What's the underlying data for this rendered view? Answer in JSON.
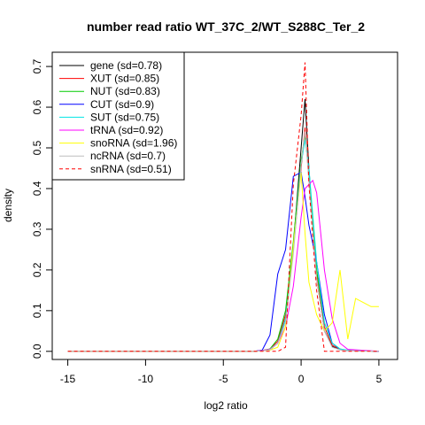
{
  "chart_data": {
    "type": "line",
    "title": "number read ratio WT_37C_2/WT_S288C_Ter_2",
    "xlabel": "log2 ratio",
    "ylabel": "density",
    "xlim": [
      -16,
      6.2
    ],
    "ylim": [
      -0.02,
      0.735
    ],
    "x_ticks": [
      -15,
      -10,
      -5,
      0,
      5
    ],
    "y_ticks": [
      0.0,
      0.1,
      0.2,
      0.3,
      0.4,
      0.5,
      0.6,
      0.7
    ],
    "grid": false,
    "legend_position": "top-left",
    "series": [
      {
        "name": "gene (sd=0.78)",
        "color": "#000000",
        "dash": false,
        "points": [
          [
            -15,
            0
          ],
          [
            -3,
            0
          ],
          [
            -2.5,
            0.001
          ],
          [
            -2,
            0.004
          ],
          [
            -1.5,
            0.02
          ],
          [
            -1,
            0.08
          ],
          [
            -0.5,
            0.26
          ],
          [
            0,
            0.5
          ],
          [
            0.25,
            0.62
          ],
          [
            0.5,
            0.45
          ],
          [
            1,
            0.18
          ],
          [
            1.5,
            0.05
          ],
          [
            2,
            0.012
          ],
          [
            2.5,
            0.004
          ],
          [
            3,
            0.002
          ],
          [
            5,
            0
          ]
        ]
      },
      {
        "name": "XUT (sd=0.85)",
        "color": "#ff0000",
        "dash": false,
        "points": [
          [
            -15,
            0
          ],
          [
            -3,
            0
          ],
          [
            -2.5,
            0.002
          ],
          [
            -2,
            0.006
          ],
          [
            -1.5,
            0.025
          ],
          [
            -1,
            0.09
          ],
          [
            -0.5,
            0.25
          ],
          [
            0,
            0.45
          ],
          [
            0.25,
            0.55
          ],
          [
            0.5,
            0.42
          ],
          [
            1,
            0.19
          ],
          [
            1.5,
            0.06
          ],
          [
            2,
            0.015
          ],
          [
            2.5,
            0.005
          ],
          [
            3,
            0.002
          ],
          [
            5,
            0
          ]
        ]
      },
      {
        "name": "NUT (sd=0.83)",
        "color": "#00cc00",
        "dash": false,
        "points": [
          [
            -15,
            0
          ],
          [
            -3,
            0
          ],
          [
            -2.5,
            0.002
          ],
          [
            -2,
            0.006
          ],
          [
            -1.5,
            0.03
          ],
          [
            -1,
            0.1
          ],
          [
            -0.5,
            0.27
          ],
          [
            0,
            0.47
          ],
          [
            0.25,
            0.53
          ],
          [
            0.5,
            0.44
          ],
          [
            1,
            0.2
          ],
          [
            1.5,
            0.07
          ],
          [
            2,
            0.02
          ],
          [
            2.5,
            0.006
          ],
          [
            3,
            0.002
          ],
          [
            5,
            0
          ]
        ]
      },
      {
        "name": "CUT (sd=0.9)",
        "color": "#0000ff",
        "dash": false,
        "points": [
          [
            -15,
            0
          ],
          [
            -3,
            0
          ],
          [
            -2.5,
            0.003
          ],
          [
            -2,
            0.04
          ],
          [
            -1.5,
            0.19
          ],
          [
            -1,
            0.25
          ],
          [
            -0.5,
            0.43
          ],
          [
            0,
            0.44
          ],
          [
            0.25,
            0.38
          ],
          [
            0.5,
            0.31
          ],
          [
            1,
            0.22
          ],
          [
            1.5,
            0.09
          ],
          [
            2,
            0.02
          ],
          [
            2.5,
            0.005
          ],
          [
            3,
            0.002
          ],
          [
            5,
            0
          ]
        ]
      },
      {
        "name": "SUT (sd=0.75)",
        "color": "#00e5e5",
        "dash": false,
        "points": [
          [
            -15,
            0
          ],
          [
            -3,
            0
          ],
          [
            -2.5,
            0.001
          ],
          [
            -2,
            0.005
          ],
          [
            -1.5,
            0.02
          ],
          [
            -1,
            0.08
          ],
          [
            -0.5,
            0.25
          ],
          [
            0,
            0.46
          ],
          [
            0.25,
            0.52
          ],
          [
            0.5,
            0.45
          ],
          [
            1,
            0.22
          ],
          [
            1.5,
            0.07
          ],
          [
            2,
            0.02
          ],
          [
            2.5,
            0.006
          ],
          [
            3,
            0.003
          ],
          [
            5,
            0
          ]
        ]
      },
      {
        "name": "tRNA (sd=0.92)",
        "color": "#ff00ff",
        "dash": false,
        "points": [
          [
            -15,
            0
          ],
          [
            -3,
            0
          ],
          [
            -2.5,
            0.002
          ],
          [
            -2,
            0.005
          ],
          [
            -1.5,
            0.02
          ],
          [
            -1,
            0.06
          ],
          [
            -0.5,
            0.16
          ],
          [
            0,
            0.33
          ],
          [
            0.25,
            0.4
          ],
          [
            0.5,
            0.41
          ],
          [
            0.75,
            0.42
          ],
          [
            1,
            0.39
          ],
          [
            1.5,
            0.2
          ],
          [
            2,
            0.08
          ],
          [
            2.5,
            0.02
          ],
          [
            3,
            0.005
          ],
          [
            5,
            0
          ]
        ]
      },
      {
        "name": "snoRNA (sd=1.96)",
        "color": "#ffff00",
        "dash": false,
        "points": [
          [
            -15,
            0
          ],
          [
            -3,
            0
          ],
          [
            -2.5,
            0.001
          ],
          [
            -2,
            0.003
          ],
          [
            -1.5,
            0.01
          ],
          [
            -1,
            0.06
          ],
          [
            -0.5,
            0.26
          ],
          [
            0,
            0.44
          ],
          [
            0.25,
            0.29
          ],
          [
            0.5,
            0.17
          ],
          [
            1,
            0.09
          ],
          [
            1.5,
            0.05
          ],
          [
            2,
            0.07
          ],
          [
            2.5,
            0.2
          ],
          [
            3,
            0.03
          ],
          [
            3.5,
            0.13
          ],
          [
            4,
            0.12
          ],
          [
            4.5,
            0.11
          ],
          [
            5,
            0.11
          ]
        ]
      },
      {
        "name": "ncRNA (sd=0.7)",
        "color": "#bebebe",
        "dash": false,
        "points": [
          [
            -15,
            0
          ],
          [
            -3,
            0
          ],
          [
            -2.5,
            0.001
          ],
          [
            -2,
            0.004
          ],
          [
            -1.5,
            0.02
          ],
          [
            -1,
            0.07
          ],
          [
            -0.5,
            0.24
          ],
          [
            0,
            0.46
          ],
          [
            0.25,
            0.54
          ],
          [
            0.5,
            0.42
          ],
          [
            1,
            0.18
          ],
          [
            1.5,
            0.05
          ],
          [
            2,
            0.01
          ],
          [
            2.5,
            0.004
          ],
          [
            3,
            0.002
          ],
          [
            5,
            0
          ]
        ]
      },
      {
        "name": "snRNA (sd=0.51)",
        "color": "#ff0000",
        "dash": true,
        "points": [
          [
            -15,
            0
          ],
          [
            -1.5,
            0
          ],
          [
            -1,
            0.01
          ],
          [
            -0.5,
            0.41
          ],
          [
            0,
            0.58
          ],
          [
            0.25,
            0.71
          ],
          [
            0.5,
            0.41
          ],
          [
            1,
            0.15
          ],
          [
            1.5,
            0
          ],
          [
            5,
            0
          ]
        ]
      }
    ]
  }
}
